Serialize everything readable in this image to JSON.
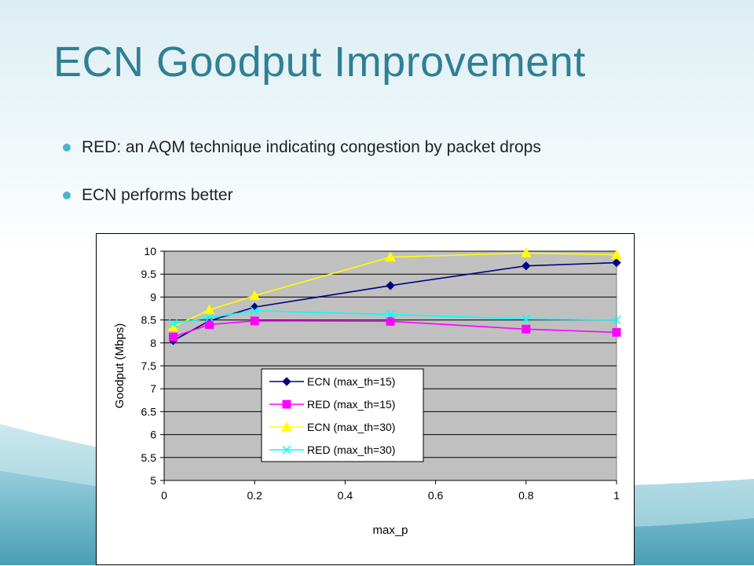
{
  "slide": {
    "title": "ECN Goodput Improvement",
    "bullets": [
      "RED: an AQM technique indicating congestion by packet drops",
      "ECN performs better"
    ],
    "colors": {
      "title": "#2e8094",
      "bullet_dot": "#4cb3c9",
      "plot_bg": "#c0c0c0"
    }
  },
  "chart_data": {
    "type": "line",
    "title": "",
    "xlabel": "max_p",
    "ylabel": "Goodput (Mbps)",
    "xlim": [
      0,
      1
    ],
    "ylim": [
      5,
      10
    ],
    "xticks": [
      0,
      0.2,
      0.4,
      0.6,
      0.8,
      1
    ],
    "xtick_labels": [
      "0",
      "0.2",
      "0.4",
      "0.6",
      "0.8",
      "1"
    ],
    "yticks": [
      5,
      5.5,
      6,
      6.5,
      7,
      7.5,
      8,
      8.5,
      9,
      9.5,
      10
    ],
    "ytick_labels": [
      "5",
      "5.5",
      "6",
      "6.5",
      "7",
      "7.5",
      "8",
      "8.5",
      "9",
      "9.5",
      "10"
    ],
    "grid": "horizontal",
    "legend_position": "lower-center",
    "series": [
      {
        "name": "ECN (max_th=15)",
        "color": "#000080",
        "marker": "diamond",
        "x": [
          0.02,
          0.1,
          0.2,
          0.5,
          0.8,
          1
        ],
        "y": [
          8.05,
          8.48,
          8.78,
          9.25,
          9.68,
          9.75
        ]
      },
      {
        "name": "RED (max_th=15)",
        "color": "#ff00ff",
        "marker": "square",
        "x": [
          0.02,
          0.1,
          0.2,
          0.5,
          0.8,
          1
        ],
        "y": [
          8.13,
          8.4,
          8.48,
          8.47,
          8.3,
          8.23
        ]
      },
      {
        "name": "ECN (max_th=30)",
        "color": "#ffff00",
        "marker": "triangle",
        "x": [
          0.02,
          0.1,
          0.2,
          0.5,
          0.8,
          1
        ],
        "y": [
          8.35,
          8.72,
          9.03,
          9.87,
          9.96,
          9.92
        ]
      },
      {
        "name": "RED (max_th=30)",
        "color": "#00ffff",
        "marker": "x",
        "x": [
          0.02,
          0.1,
          0.2,
          0.5,
          0.8,
          1
        ],
        "y": [
          8.42,
          8.55,
          8.7,
          8.62,
          8.52,
          8.5
        ]
      }
    ]
  }
}
